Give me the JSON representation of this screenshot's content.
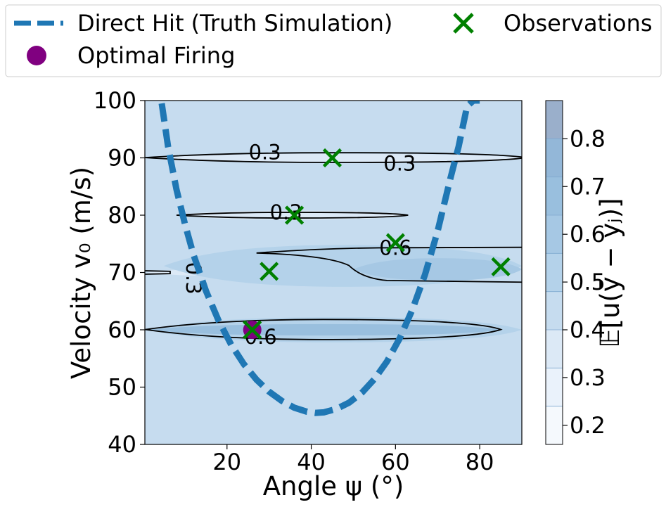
{
  "chart_data": {
    "type": "contour",
    "xlabel": "Angle ψ (°)",
    "ylabel": "Velocity v₀ (m/s)",
    "colorbar_label": "𝔼[u(ȳ − yⱼ)]",
    "xlim": [
      0.5,
      90
    ],
    "ylim": [
      40,
      100
    ],
    "xticks": [
      20,
      40,
      60,
      80
    ],
    "yticks": [
      40,
      50,
      60,
      70,
      80,
      90,
      100
    ],
    "colorbar_ticks": [
      0.2,
      0.3,
      0.4,
      0.5,
      0.6,
      0.7,
      0.8
    ],
    "colorbar_range": [
      0.16,
      0.88
    ],
    "colorbar_levels": [
      0.16,
      0.24,
      0.32,
      0.4,
      0.48,
      0.56,
      0.64,
      0.72,
      0.8,
      0.88
    ],
    "colorbar_colors": [
      "#f5f9fd",
      "#eaf2fb",
      "#dce9f6",
      "#c6dcef",
      "#b4d2ea",
      "#a6c8e4",
      "#99bfde",
      "#93b7d8",
      "#9aafcb"
    ],
    "background_level_color": "#c6dcef",
    "legend": {
      "placement": "top",
      "entries": [
        {
          "label": "Direct Hit (Truth Simulation)",
          "marker": "dashed-line",
          "color": "#1f77b4"
        },
        {
          "label": "Observations",
          "marker": "x",
          "color": "#008000"
        },
        {
          "label": "Optimal Firing",
          "marker": "circle",
          "color": "#800080"
        }
      ]
    },
    "series": [
      {
        "name": "Direct Hit (Truth Simulation)",
        "style": "dashed",
        "color": "#1f77b4",
        "x": [
          4.5,
          6,
          8,
          10,
          12,
          15,
          18,
          21,
          24,
          27,
          30,
          33,
          36,
          39,
          41,
          43,
          46,
          49,
          52,
          55,
          58,
          61,
          64,
          67,
          70,
          73,
          75,
          77,
          78.5,
          80
        ],
        "y": [
          99.5,
          92,
          84.5,
          78.5,
          73.2,
          66.8,
          61.6,
          57.4,
          54,
          51.3,
          49.2,
          47.6,
          46.4,
          45.7,
          45.5,
          45.6,
          46.2,
          47.3,
          49,
          51.4,
          54.5,
          58.5,
          63.5,
          69.6,
          77.2,
          86.3,
          92,
          99,
          100,
          100
        ]
      },
      {
        "name": "Observations",
        "type": "scatter",
        "color": "#008000",
        "marker": "x",
        "points": [
          [
            26,
            60
          ],
          [
            30,
            70.2
          ],
          [
            36,
            80
          ],
          [
            45,
            90
          ],
          [
            60,
            75.2
          ],
          [
            85,
            71
          ]
        ]
      },
      {
        "name": "Optimal Firing",
        "type": "scatter",
        "color": "#800080",
        "marker": "circle",
        "points": [
          [
            26,
            60
          ]
        ]
      }
    ],
    "filled_regions": [
      {
        "level": "0.24-0.32",
        "color": "#dce9f6",
        "x": [
          1,
          90
        ],
        "y_band": [
          89.3,
          90.7
        ]
      },
      {
        "level": "0.24-0.32",
        "color": "#dce9f6",
        "x": [
          8,
          63
        ],
        "y_band": [
          79.2,
          80.8
        ]
      },
      {
        "level": "0.24-0.32",
        "color": "#dce9f6",
        "x": [
          1,
          38
        ],
        "y_band": [
          69.4,
          70.6
        ]
      },
      {
        "level": "0.48-0.56",
        "color": "#b4d2ea",
        "x": [
          5,
          90
        ],
        "y_band": [
          67.5,
          74.8
        ]
      },
      {
        "level": "0.56-0.64",
        "color": "#a6c8e4",
        "x": [
          50,
          90
        ],
        "y_band": [
          68.6,
          72.5
        ]
      },
      {
        "level": "0.48-0.56",
        "color": "#b4d2ea",
        "x": [
          1,
          90
        ],
        "y_band": [
          57.8,
          62.2
        ]
      },
      {
        "level": "0.64-0.72",
        "color": "#99bfde",
        "x": [
          1,
          85
        ],
        "y_band": [
          59.0,
          61.0
        ]
      }
    ],
    "contour_lines": [
      {
        "level": "0.3",
        "label_points": [
          [
            29,
            91
          ],
          [
            61,
            89
          ]
        ]
      },
      {
        "level": "0.3",
        "label_points": [
          [
            34,
            80.5
          ]
        ]
      },
      {
        "level": "0.3",
        "label_points": [
          [
            12,
            69
          ]
        ],
        "label_rotation": 90
      },
      {
        "level": "0.6",
        "label_points": [
          [
            60,
            74.3
          ]
        ]
      },
      {
        "level": "0.6",
        "label_points": [
          [
            28,
            58.8
          ]
        ]
      }
    ],
    "grid": false
  }
}
